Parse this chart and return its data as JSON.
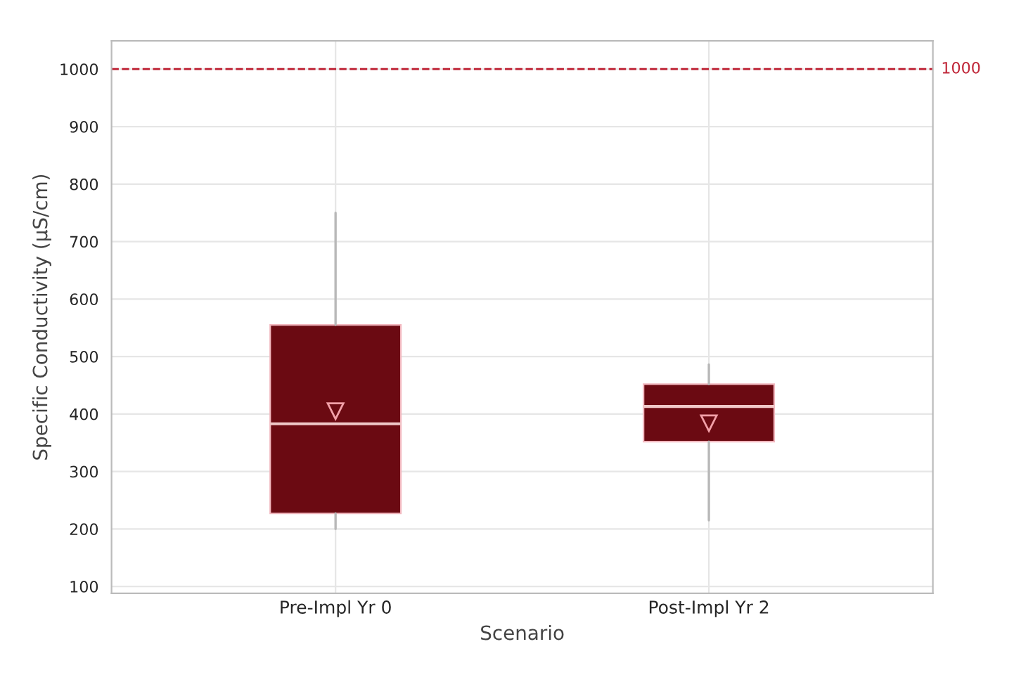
{
  "chart_data": {
    "type": "box",
    "xlabel": "Scenario",
    "ylabel": "Specific Conductivity (µS/cm)",
    "categories": [
      "Pre-Impl Yr 0",
      "Post-Impl Yr 2"
    ],
    "series": [
      {
        "color": "#6b0a12",
        "boxes": [
          {
            "low": 200,
            "q1": 227,
            "median": 383,
            "q3": 555,
            "high": 750,
            "mean": 405
          },
          {
            "low": 215,
            "q1": 352,
            "median": 413,
            "q3": 452,
            "high": 486,
            "mean": 384
          }
        ]
      }
    ],
    "ylim": [
      88,
      1049
    ],
    "yticks": [
      100,
      200,
      300,
      400,
      500,
      600,
      700,
      800,
      900,
      1000
    ],
    "ref_lines": [
      {
        "axis": "y",
        "value": 1000,
        "label": "1000",
        "color": "#c0283a",
        "line_style": "dashed"
      }
    ],
    "grid": true
  }
}
